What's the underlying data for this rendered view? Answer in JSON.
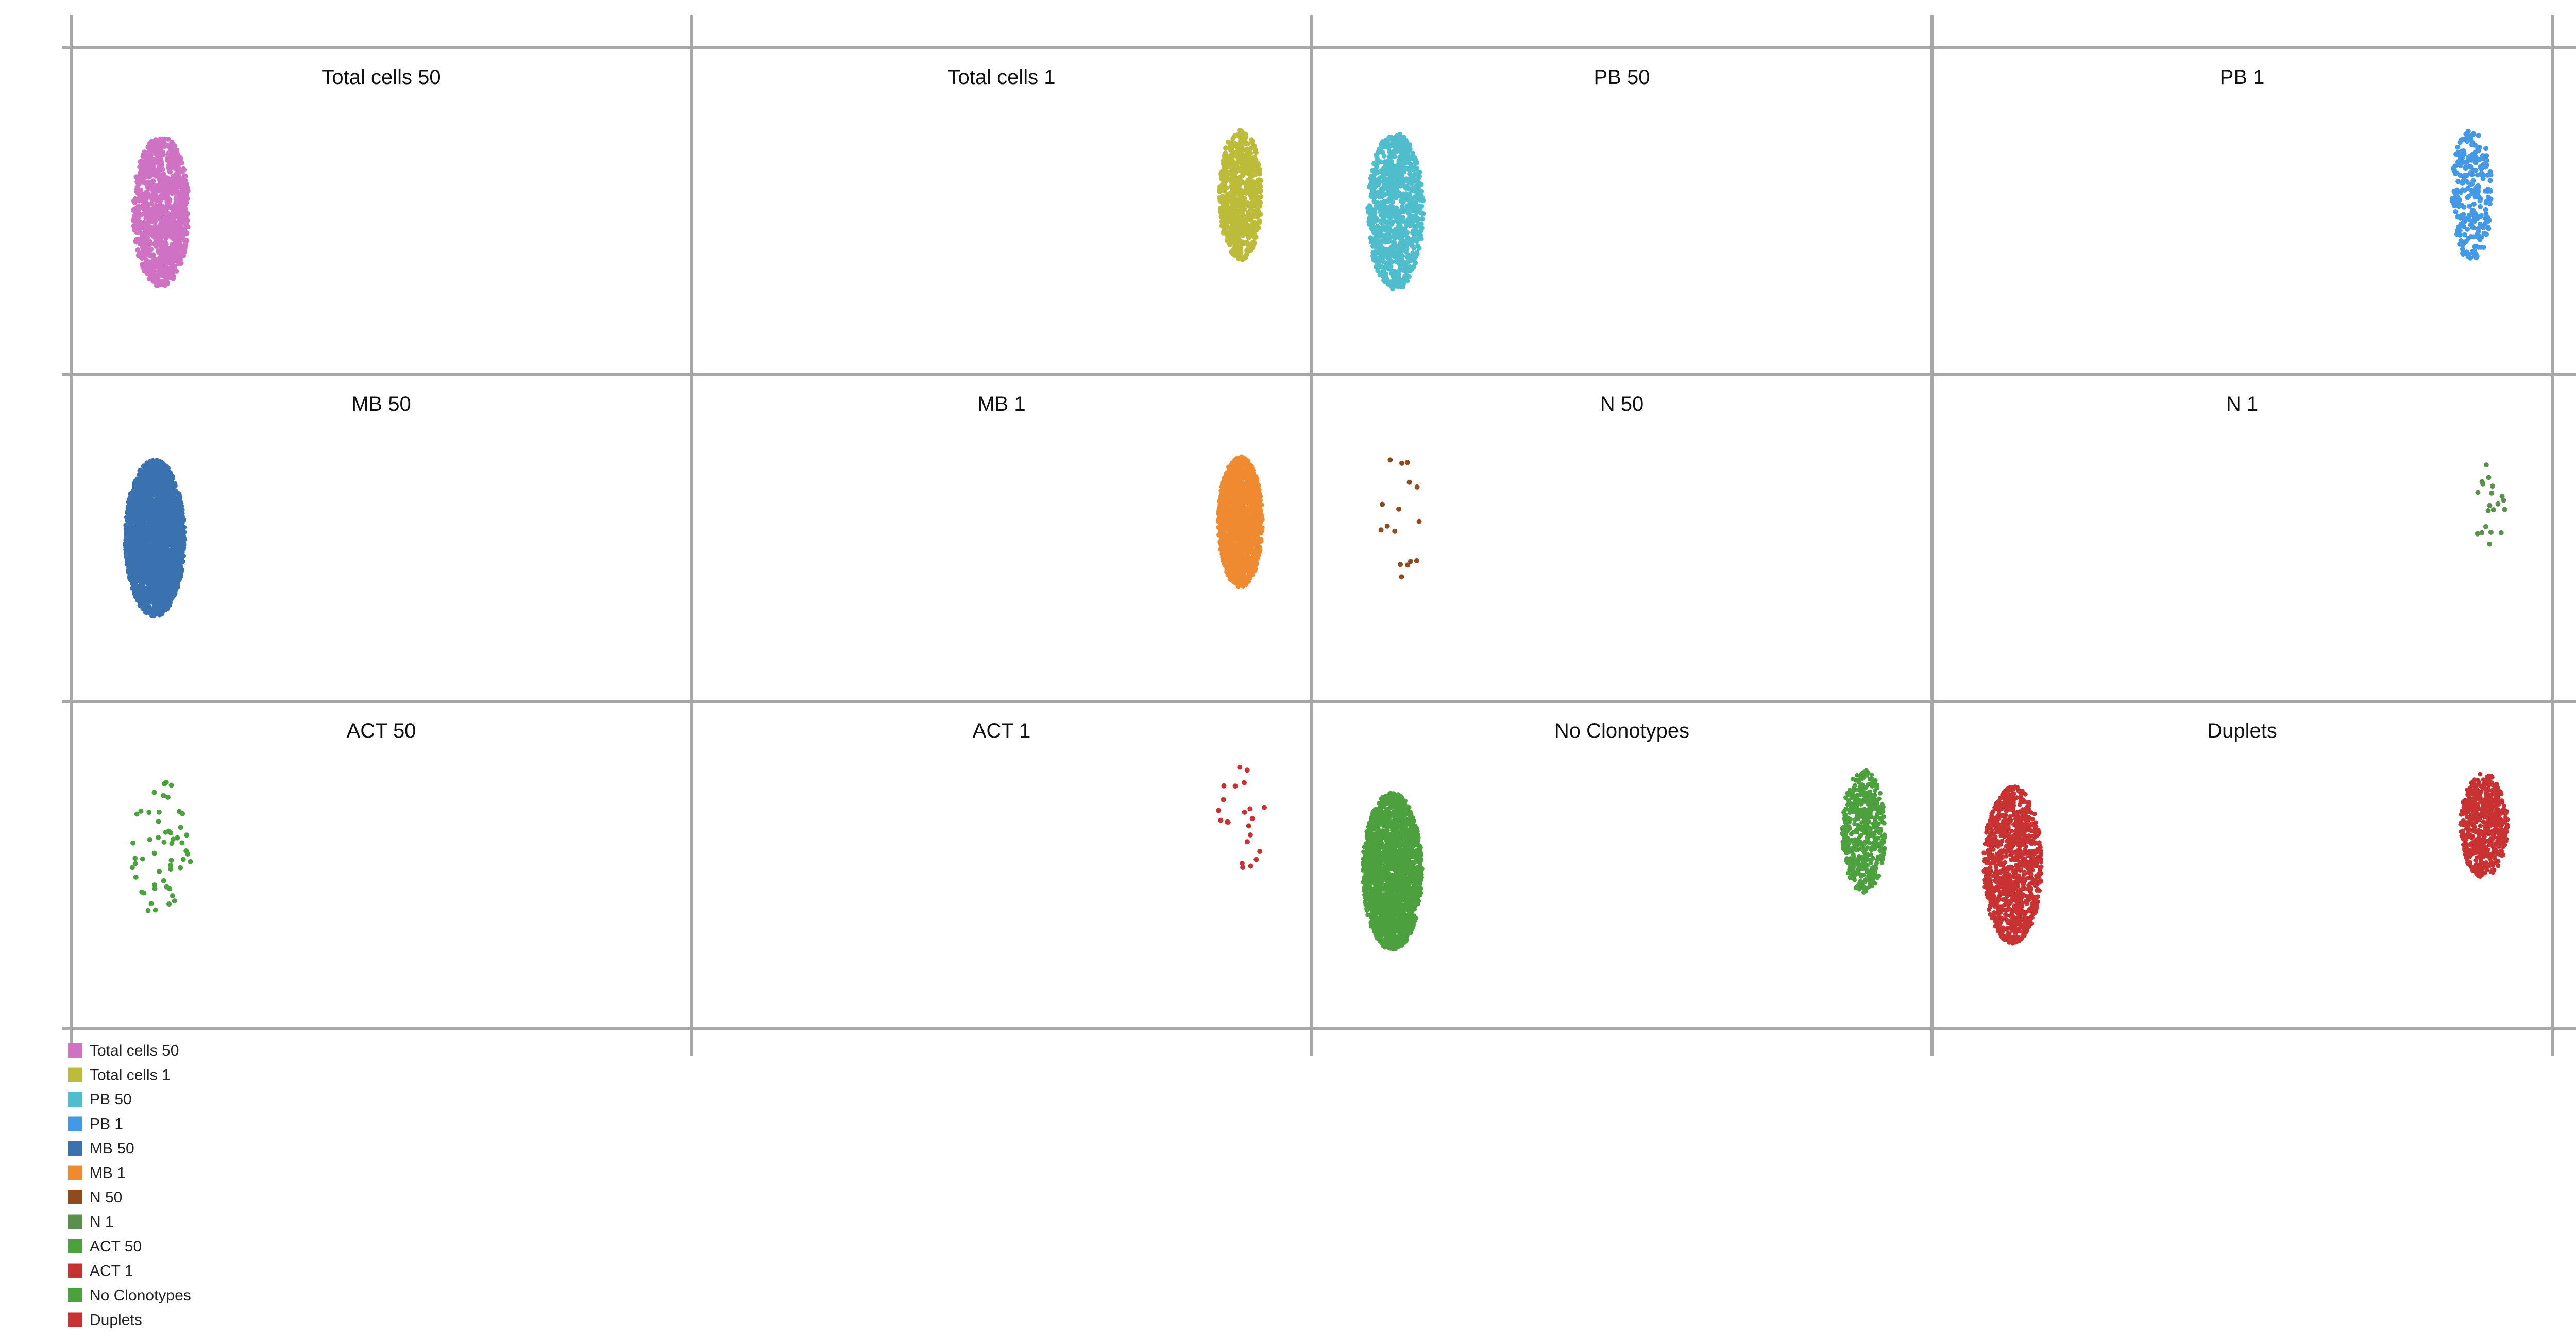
{
  "chart_data": {
    "type": "scatter",
    "layout": "facet-grid",
    "rows": 3,
    "cols": 4,
    "x_domain": [
      0,
      1
    ],
    "y_domain": [
      0,
      1
    ],
    "grid": true,
    "legend_position": "bottom-left",
    "panels": [
      {
        "title": "Total cells 50",
        "color": "#cf72c3",
        "n_points": 1000,
        "clusters": [
          {
            "cx": 0.145,
            "cy": 0.5,
            "sx": 0.045,
            "sy": 0.23,
            "weight": 1
          }
        ]
      },
      {
        "title": "Total cells 1",
        "color": "#bcbc3a",
        "n_points": 700,
        "clusters": [
          {
            "cx": 0.885,
            "cy": 0.45,
            "sx": 0.034,
            "sy": 0.2,
            "weight": 1
          }
        ]
      },
      {
        "title": "PB 50",
        "color": "#4fbdcc",
        "n_points": 900,
        "clusters": [
          {
            "cx": 0.135,
            "cy": 0.5,
            "sx": 0.045,
            "sy": 0.24,
            "weight": 1
          }
        ]
      },
      {
        "title": "PB 1",
        "color": "#4499e6",
        "n_points": 260,
        "clusters": [
          {
            "cx": 0.87,
            "cy": 0.45,
            "sx": 0.033,
            "sy": 0.2,
            "weight": 1
          }
        ]
      },
      {
        "title": "MB 50",
        "color": "#3a72b0",
        "n_points": 3000,
        "clusters": [
          {
            "cx": 0.135,
            "cy": 0.5,
            "sx": 0.048,
            "sy": 0.24,
            "weight": 1
          }
        ]
      },
      {
        "title": "MB 1",
        "color": "#f08a30",
        "n_points": 1600,
        "clusters": [
          {
            "cx": 0.885,
            "cy": 0.45,
            "sx": 0.036,
            "sy": 0.2,
            "weight": 1
          }
        ]
      },
      {
        "title": "N 50",
        "color": "#8f4a1e",
        "n_points": 16,
        "clusters": [
          {
            "cx": 0.145,
            "cy": 0.43,
            "sx": 0.035,
            "sy": 0.2,
            "weight": 1
          }
        ]
      },
      {
        "title": "N 1",
        "color": "#5b8f4e",
        "n_points": 20,
        "clusters": [
          {
            "cx": 0.9,
            "cy": 0.43,
            "sx": 0.025,
            "sy": 0.18,
            "weight": 1
          }
        ]
      },
      {
        "title": "ACT 50",
        "color": "#4da03e",
        "n_points": 55,
        "clusters": [
          {
            "cx": 0.145,
            "cy": 0.45,
            "sx": 0.05,
            "sy": 0.22,
            "weight": 1
          }
        ]
      },
      {
        "title": "ACT 1",
        "color": "#c93232",
        "n_points": 22,
        "clusters": [
          {
            "cx": 0.885,
            "cy": 0.36,
            "sx": 0.04,
            "sy": 0.17,
            "weight": 1
          }
        ]
      },
      {
        "title": "No Clonotypes",
        "color": "#4da03e",
        "n_points": 2600,
        "clusters": [
          {
            "cx": 0.13,
            "cy": 0.52,
            "sx": 0.048,
            "sy": 0.24,
            "weight": 0.8
          },
          {
            "cx": 0.89,
            "cy": 0.4,
            "sx": 0.035,
            "sy": 0.19,
            "weight": 0.2
          }
        ]
      },
      {
        "title": "Duplets",
        "color": "#c93232",
        "n_points": 1700,
        "clusters": [
          {
            "cx": 0.13,
            "cy": 0.5,
            "sx": 0.047,
            "sy": 0.24,
            "weight": 0.62
          },
          {
            "cx": 0.89,
            "cy": 0.38,
            "sx": 0.038,
            "sy": 0.16,
            "weight": 0.38
          }
        ]
      }
    ],
    "legend": [
      {
        "label": "Total cells 50",
        "color": "#cf72c3"
      },
      {
        "label": "Total cells 1",
        "color": "#bcbc3a"
      },
      {
        "label": "PB 50",
        "color": "#4fbdcc"
      },
      {
        "label": "PB 1",
        "color": "#4499e6"
      },
      {
        "label": "MB 50",
        "color": "#3a72b0"
      },
      {
        "label": "MB 1",
        "color": "#f08a30"
      },
      {
        "label": "N 50",
        "color": "#8f4a1e"
      },
      {
        "label": "N 1",
        "color": "#5b8f4e"
      },
      {
        "label": "ACT 50",
        "color": "#4da03e"
      },
      {
        "label": "ACT 1",
        "color": "#c93232"
      },
      {
        "label": "No Clonotypes",
        "color": "#4da03e"
      },
      {
        "label": "Duplets",
        "color": "#c93232"
      }
    ]
  }
}
